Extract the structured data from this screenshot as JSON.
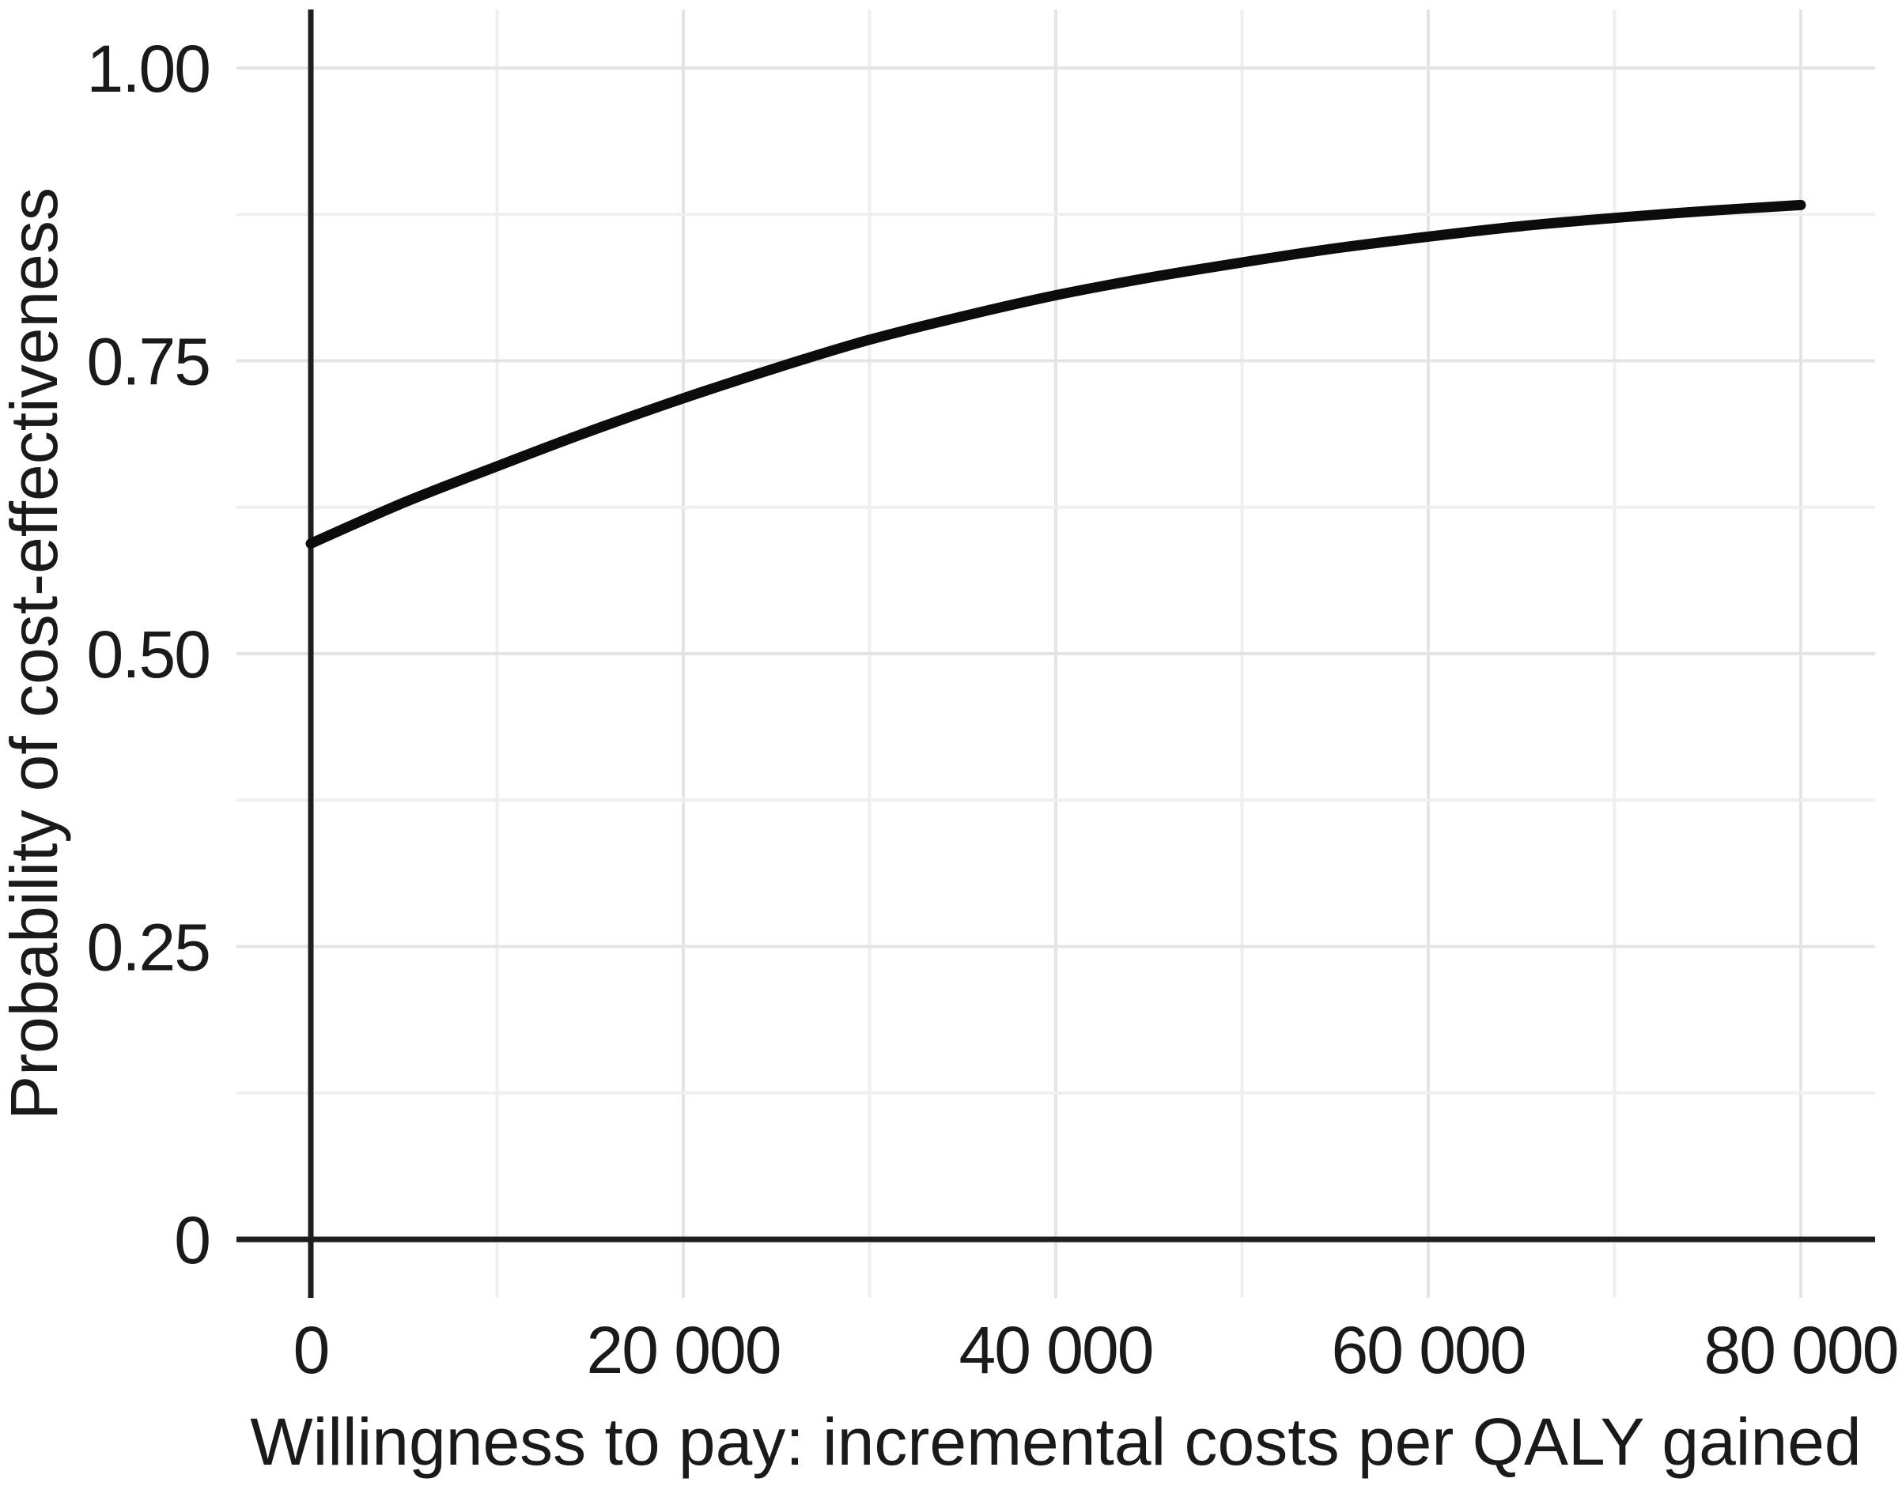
{
  "figure": {
    "background": "#ffffff",
    "text_color": "#1a1a1a",
    "curve_color": "#0c0c0c",
    "zero_line_color": "#1e1e1e",
    "grid_major_color": "#e3e5e5",
    "grid_minor_color": "#eef0f0"
  },
  "chart_data": {
    "type": "line",
    "title": "",
    "xlabel": "Willingness to pay: incremental costs per QALY gained",
    "ylabel": "Probability of cost-effectiveness",
    "xlim": [
      0,
      80000
    ],
    "ylim": [
      0,
      1
    ],
    "x_ticks": [
      {
        "value": 0,
        "label": "0"
      },
      {
        "value": 20000,
        "label": "20 000"
      },
      {
        "value": 40000,
        "label": "40 000"
      },
      {
        "value": 60000,
        "label": "60 000"
      },
      {
        "value": 80000,
        "label": "80 000"
      }
    ],
    "y_ticks": [
      {
        "value": 0,
        "label": "0"
      },
      {
        "value": 0.25,
        "label": "0.25"
      },
      {
        "value": 0.5,
        "label": "0.50"
      },
      {
        "value": 0.75,
        "label": "0.75"
      },
      {
        "value": 1,
        "label": "1.00"
      }
    ],
    "x_minor_step": 10000,
    "y_minor_step": 0.125,
    "grid": "major+minor",
    "legend": "none",
    "zero_axis_lines": true,
    "series": [
      {
        "x": [
          0,
          5000,
          10000,
          15000,
          20000,
          25000,
          30000,
          35000,
          40000,
          45000,
          50000,
          55000,
          60000,
          65000,
          70000,
          75000,
          80000
        ],
        "y": [
          0.594,
          0.629,
          0.66,
          0.69,
          0.718,
          0.744,
          0.768,
          0.788,
          0.806,
          0.821,
          0.834,
          0.846,
          0.856,
          0.865,
          0.872,
          0.878,
          0.883
        ]
      }
    ]
  }
}
